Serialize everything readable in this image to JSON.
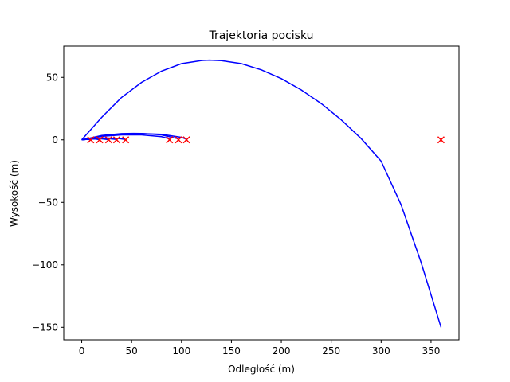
{
  "chart_data": {
    "type": "line",
    "title": "Trajektoria pocisku",
    "xlabel": "Odległość (m)",
    "ylabel": "Wysokość (m)",
    "xlim": [
      -18,
      378
    ],
    "ylim": [
      -160,
      75
    ],
    "xticks": [
      0,
      50,
      100,
      150,
      200,
      250,
      300,
      350
    ],
    "yticks": [
      -150,
      -100,
      -50,
      0,
      50
    ],
    "tick_labels_x": [
      "0",
      "50",
      "100",
      "150",
      "200",
      "250",
      "300",
      "350"
    ],
    "tick_labels_y": [
      "−150",
      "−100",
      "−50",
      "0",
      "50"
    ],
    "grid": false,
    "colors": {
      "trajectory": "#0000ff",
      "marker": "#ff0000"
    },
    "series": [
      {
        "x": [
          0,
          20,
          40,
          60,
          80,
          100,
          120,
          128,
          140,
          160,
          180,
          200,
          220,
          240,
          260,
          280,
          300,
          320,
          340,
          360
        ],
        "y": [
          0,
          18,
          34,
          46,
          55,
          61,
          63.5,
          63.8,
          63.4,
          61,
          56,
          49,
          40,
          29,
          16,
          1,
          -17,
          -52,
          -98,
          -150
        ]
      },
      {
        "x": [
          0,
          20,
          40,
          52,
          60,
          80,
          96
        ],
        "y": [
          0,
          3.5,
          5,
          5.2,
          5.1,
          4,
          1
        ]
      },
      {
        "x": [
          0,
          20,
          45,
          60,
          80,
          100,
          105
        ],
        "y": [
          0,
          3,
          4.6,
          5,
          4.5,
          2,
          0.5
        ]
      },
      {
        "x": [
          0,
          20,
          40,
          60,
          80,
          88
        ],
        "y": [
          0,
          2.8,
          4,
          4,
          2.5,
          0.8
        ]
      },
      {
        "x": [
          0,
          20,
          35,
          44
        ],
        "y": [
          0,
          1.5,
          1.3,
          0.3
        ]
      },
      {
        "x": [
          0,
          15,
          25,
          35
        ],
        "y": [
          0,
          1.2,
          1.1,
          0.3
        ]
      },
      {
        "x": [
          0,
          10,
          20,
          27
        ],
        "y": [
          0,
          1,
          0.8,
          0.2
        ]
      },
      {
        "x": [
          0,
          8,
          14,
          18
        ],
        "y": [
          0,
          0.7,
          0.6,
          0.1
        ]
      },
      {
        "x": [
          0,
          4,
          7,
          9
        ],
        "y": [
          0,
          0.4,
          0.3,
          0
        ]
      }
    ],
    "markers": {
      "x": [
        9,
        18,
        27,
        35,
        44,
        88,
        97,
        105,
        360
      ],
      "y": [
        0,
        0,
        0,
        0,
        0,
        0,
        0,
        0,
        0
      ]
    }
  }
}
